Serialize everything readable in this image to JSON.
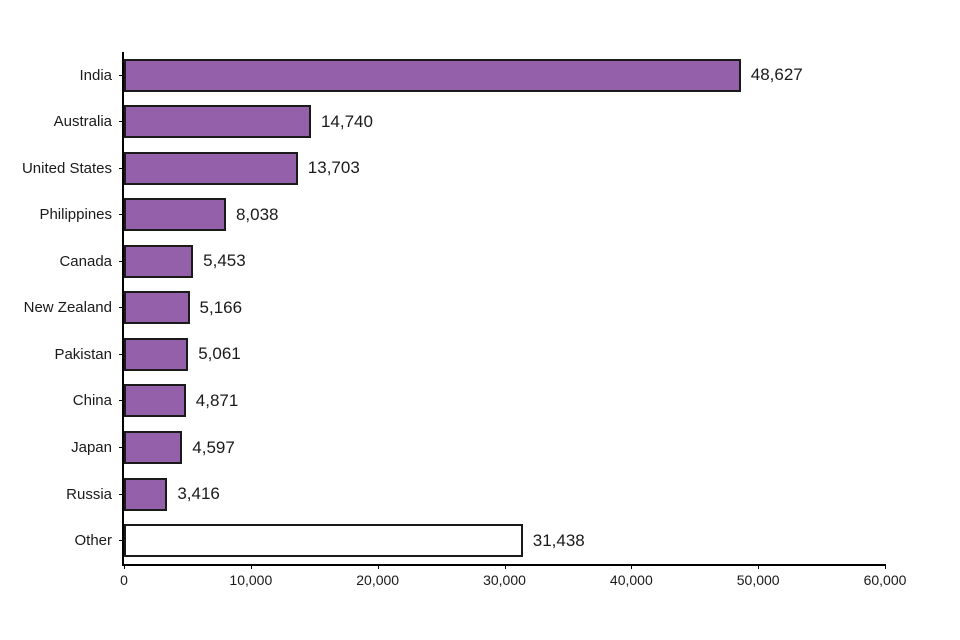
{
  "chart_data": {
    "type": "bar",
    "orientation": "horizontal",
    "title": "",
    "xlabel": "",
    "ylabel": "",
    "categories": [
      "India",
      "Australia",
      "United States",
      "Philippines",
      "Canada",
      "New Zealand",
      "Pakistan",
      "China",
      "Japan",
      "Russia",
      "Other"
    ],
    "values": [
      48627,
      14740,
      13703,
      8038,
      5453,
      5166,
      5061,
      4871,
      4597,
      3416,
      31438
    ],
    "value_labels": [
      "48,627",
      "14,740",
      "13,703",
      "8,038",
      "5,453",
      "5,166",
      "5,061",
      "4,871",
      "4,597",
      "3,416",
      "31,438"
    ],
    "xlim": [
      0,
      60000
    ],
    "x_ticks": [
      0,
      10000,
      20000,
      30000,
      40000,
      50000,
      60000
    ],
    "x_tick_labels": [
      "0",
      "10,000",
      "20,000",
      "30,000",
      "40,000",
      "50,000",
      "60,000"
    ],
    "grid": false,
    "legend": false,
    "colors": {
      "bar_fill": "#9460aa",
      "other_bar_fill": "#ffffff",
      "bar_border": "#1a1a1a",
      "axis": "#000000",
      "text": "#1a1a1a"
    }
  }
}
